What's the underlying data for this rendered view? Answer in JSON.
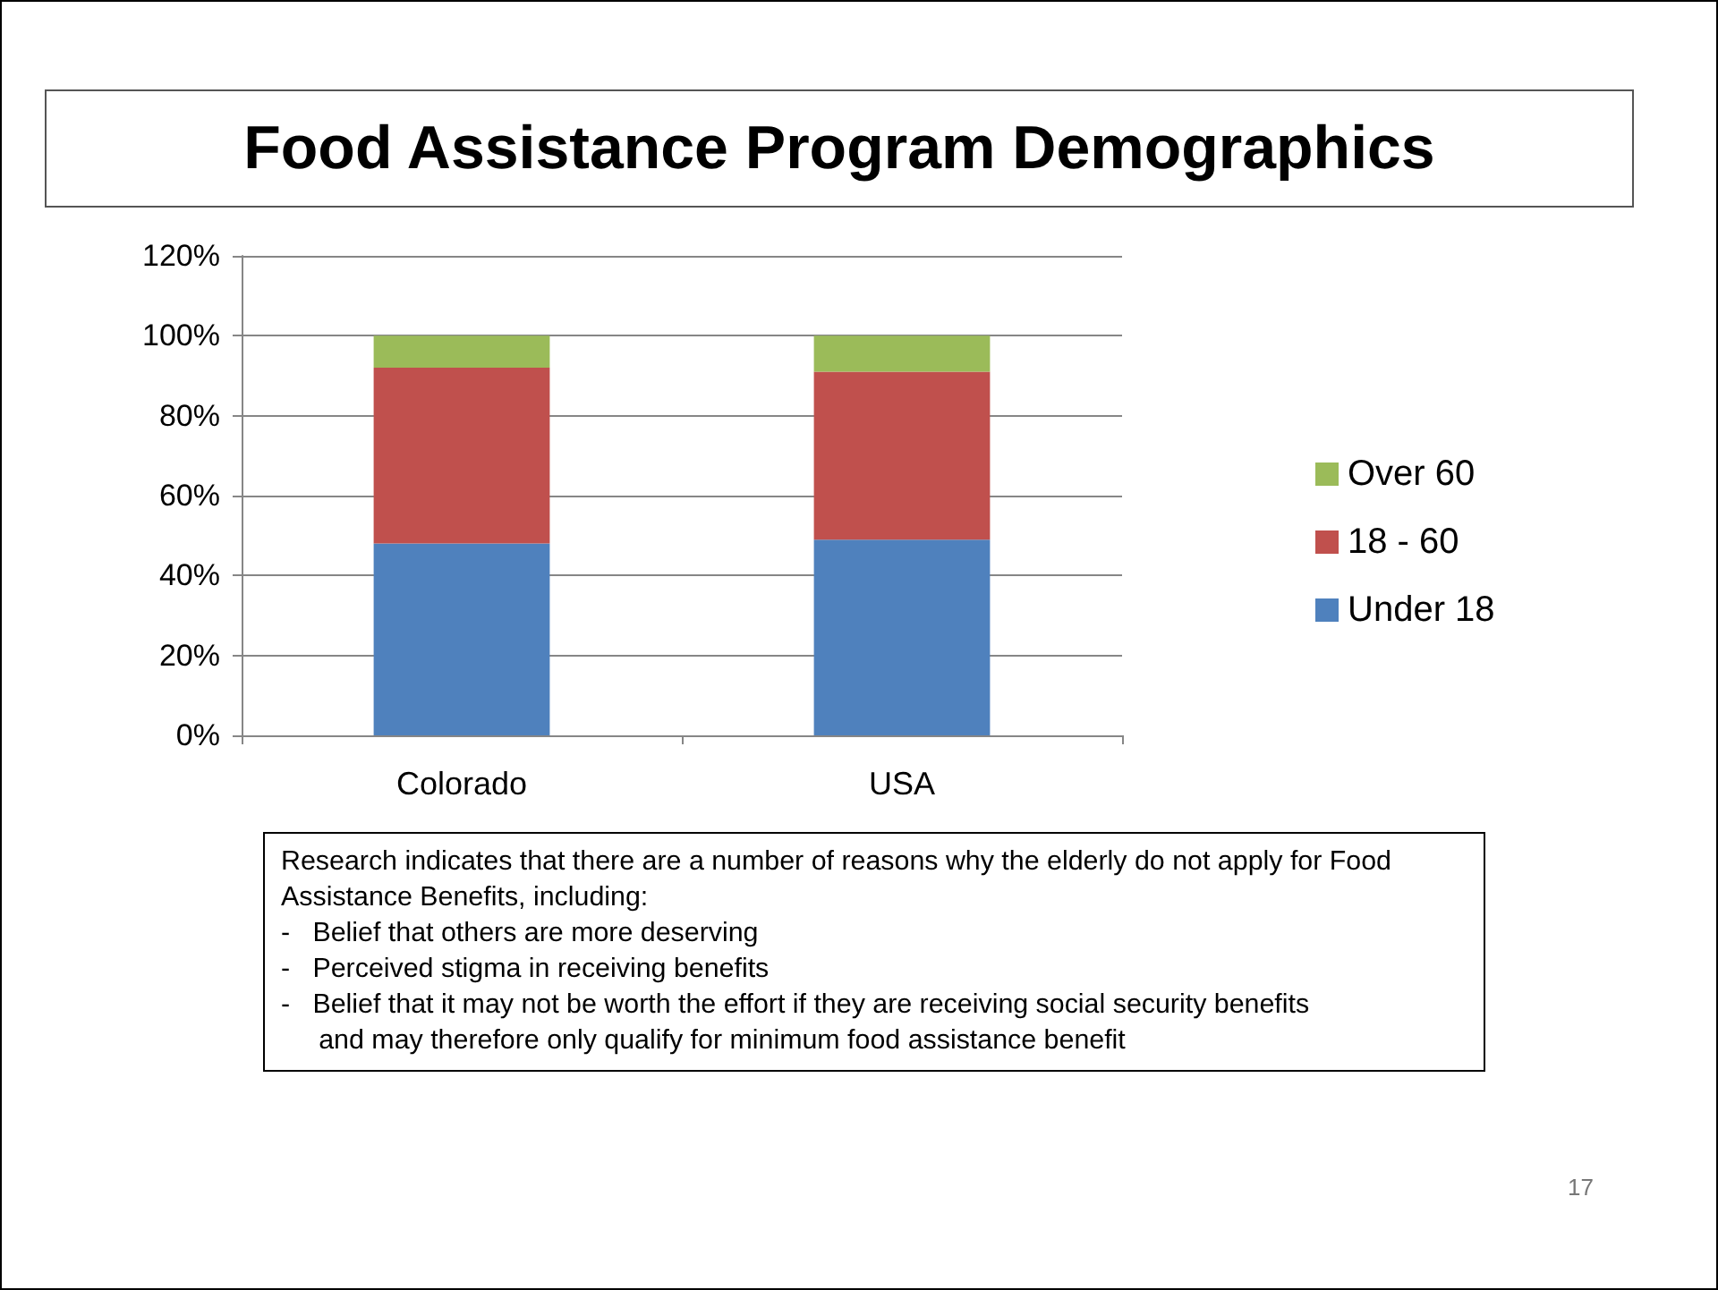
{
  "chart_data": {
    "type": "bar",
    "title": "Food Assistance Program Demographics",
    "categories": [
      "Colorado",
      "USA"
    ],
    "stacked": true,
    "series": [
      {
        "name": "Under 18",
        "color": "#4f81bd",
        "values": [
          48,
          49
        ]
      },
      {
        "name": "18 - 60",
        "color": "#c0504d",
        "values": [
          44,
          42
        ]
      },
      {
        "name": "Over 60",
        "color": "#9bbb59",
        "values": [
          8,
          9
        ]
      }
    ],
    "ylim": [
      0,
      120
    ],
    "yticks": [
      {
        "value": 0,
        "label": "0%"
      },
      {
        "value": 20,
        "label": "20%"
      },
      {
        "value": 40,
        "label": "40%"
      },
      {
        "value": 60,
        "label": "60%"
      },
      {
        "value": 80,
        "label": "80%"
      },
      {
        "value": 100,
        "label": "100%"
      },
      {
        "value": 120,
        "label": "120%"
      }
    ],
    "grid": "y",
    "legend": "right",
    "annotations": [
      "Research indicates that there are a number of reasons why the elderly do not apply for Food Assistance Benefits, including:\n-   Belief that others are more deserving\n-   Perceived stigma in receiving benefits\n-   Belief that it may not be worth the effort if they are receiving social security benefits\n     and may therefore only qualify for minimum food assistance benefit",
      "17"
    ]
  }
}
